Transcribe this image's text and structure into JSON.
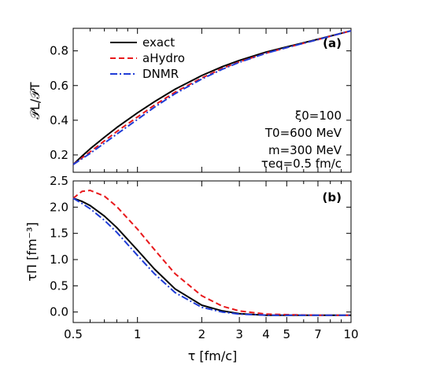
{
  "chart_data": [
    {
      "panel_label": "(a)",
      "type": "line",
      "ylabel": "𝒫L/𝒫T",
      "xscale": "log",
      "xlim": [
        0.5,
        10
      ],
      "ylim": [
        0.1,
        0.93
      ],
      "yticks": [
        0.2,
        0.4,
        0.6,
        0.8
      ],
      "ytick_labels": [
        "0.2",
        "0.4",
        "0.6",
        "0.8"
      ],
      "legend_position": "top-left",
      "grid": false,
      "series": [
        {
          "name": "exact",
          "color": "#000000",
          "dash": "solid",
          "x": [
            0.5,
            0.55,
            0.6,
            0.7,
            0.8,
            1.0,
            1.2,
            1.5,
            2.0,
            2.5,
            3.0,
            4.0,
            5.0,
            7.0,
            10.0
          ],
          "y": [
            0.145,
            0.193,
            0.235,
            0.302,
            0.358,
            0.443,
            0.507,
            0.579,
            0.658,
            0.709,
            0.745,
            0.793,
            0.823,
            0.867,
            0.916
          ]
        },
        {
          "name": "aHydro",
          "color": "#e8191c",
          "dash": "dashed",
          "x": [
            0.5,
            0.55,
            0.6,
            0.7,
            0.8,
            1.0,
            1.2,
            1.5,
            2.0,
            2.5,
            3.0,
            4.0,
            5.0,
            7.0,
            10.0
          ],
          "y": [
            0.145,
            0.183,
            0.218,
            0.281,
            0.335,
            0.419,
            0.487,
            0.562,
            0.644,
            0.699,
            0.737,
            0.787,
            0.819,
            0.865,
            0.916
          ]
        },
        {
          "name": "DNMR",
          "color": "#1f3cd6",
          "dash": "dashdot",
          "x": [
            0.5,
            0.55,
            0.6,
            0.7,
            0.8,
            1.0,
            1.2,
            1.5,
            2.0,
            2.5,
            3.0,
            4.0,
            5.0,
            7.0,
            10.0
          ],
          "y": [
            0.145,
            0.178,
            0.209,
            0.268,
            0.32,
            0.405,
            0.475,
            0.553,
            0.638,
            0.694,
            0.734,
            0.786,
            0.819,
            0.865,
            0.916
          ]
        }
      ],
      "annotations": [
        "ξ0=100",
        "T0=600 MeV",
        "m=300 MeV",
        "τeq=0.5 fm/c"
      ]
    },
    {
      "panel_label": "(b)",
      "type": "line",
      "ylabel": "τΠ [fm⁻³]",
      "xlabel": "τ [fm/c]",
      "xscale": "log",
      "xlim": [
        0.5,
        10
      ],
      "ylim": [
        -0.2,
        2.5
      ],
      "xticks": [
        0.5,
        1,
        2,
        3,
        4,
        5,
        7,
        10
      ],
      "xtick_labels": [
        "0.5",
        "1",
        "2",
        "3",
        "4",
        "5",
        "7",
        "10"
      ],
      "yticks": [
        0.0,
        0.5,
        1.0,
        1.5,
        2.0,
        2.5
      ],
      "ytick_labels": [
        "0.0",
        "0.5",
        "1.0",
        "1.5",
        "2.0",
        "2.5"
      ],
      "grid": false,
      "series": [
        {
          "name": "exact",
          "color": "#000000",
          "dash": "solid",
          "x": [
            0.5,
            0.55,
            0.6,
            0.7,
            0.8,
            1.0,
            1.2,
            1.5,
            2.0,
            2.5,
            3.0,
            4.0,
            5.0,
            7.0,
            10.0
          ],
          "y": [
            2.17,
            2.11,
            2.03,
            1.83,
            1.61,
            1.18,
            0.82,
            0.44,
            0.13,
            0.02,
            -0.03,
            -0.06,
            -0.06,
            -0.06,
            -0.06
          ]
        },
        {
          "name": "aHydro",
          "color": "#e8191c",
          "dash": "dashed",
          "x": [
            0.5,
            0.55,
            0.6,
            0.7,
            0.8,
            1.0,
            1.2,
            1.5,
            2.0,
            2.5,
            3.0,
            4.0,
            5.0,
            7.0,
            10.0
          ],
          "y": [
            2.17,
            2.3,
            2.32,
            2.21,
            2.01,
            1.58,
            1.19,
            0.73,
            0.31,
            0.11,
            0.02,
            -0.04,
            -0.05,
            -0.06,
            -0.06
          ]
        },
        {
          "name": "DNMR",
          "color": "#1f3cd6",
          "dash": "dashdot",
          "x": [
            0.5,
            0.55,
            0.6,
            0.7,
            0.8,
            1.0,
            1.2,
            1.5,
            2.0,
            2.5,
            3.0,
            4.0,
            5.0,
            7.0,
            10.0
          ],
          "y": [
            2.17,
            2.07,
            1.97,
            1.75,
            1.52,
            1.08,
            0.73,
            0.37,
            0.09,
            0.0,
            -0.04,
            -0.06,
            -0.06,
            -0.06,
            -0.06
          ]
        }
      ]
    }
  ]
}
